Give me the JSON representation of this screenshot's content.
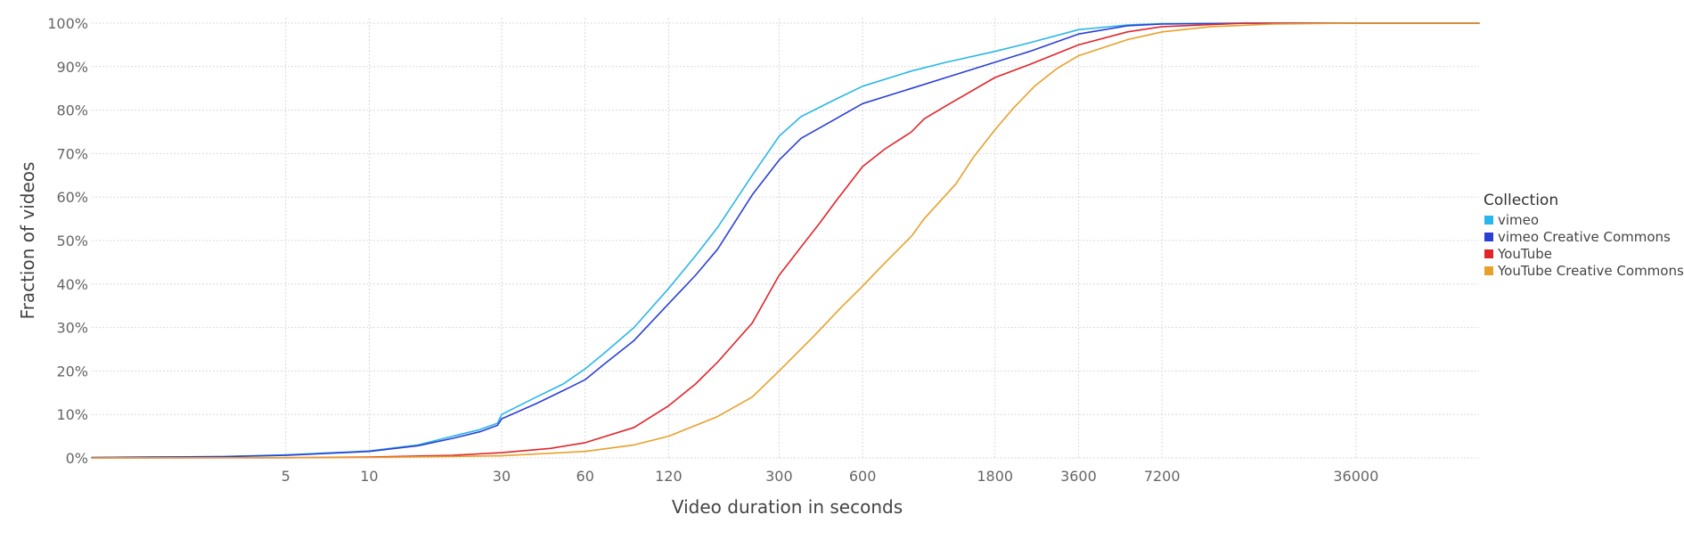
{
  "chart_data": {
    "type": "line",
    "xlabel": "Video duration in seconds",
    "ylabel": "Fraction of videos",
    "x_scale": "log",
    "xlim": [
      1,
      100000
    ],
    "ylim": [
      0,
      100
    ],
    "x_ticks": [
      5,
      10,
      30,
      60,
      120,
      300,
      600,
      1800,
      3600,
      7200,
      36000
    ],
    "x_tick_labels": [
      "5",
      "10",
      "30",
      "60",
      "120",
      "300",
      "600",
      "1800",
      "3600",
      "7200",
      "36000"
    ],
    "y_ticks": [
      0,
      10,
      20,
      30,
      40,
      50,
      60,
      70,
      80,
      90,
      100
    ],
    "y_tick_labels": [
      "0%",
      "10%",
      "20%",
      "30%",
      "40%",
      "50%",
      "60%",
      "70%",
      "80%",
      "90%",
      "100%"
    ],
    "grid": true,
    "legend": {
      "title": "Collection",
      "position": "right"
    },
    "series": [
      {
        "name": "vimeo",
        "color": "#29b6e8",
        "points": [
          [
            1,
            0.1
          ],
          [
            3,
            0.3
          ],
          [
            5,
            0.7
          ],
          [
            10,
            1.6
          ],
          [
            15,
            3
          ],
          [
            20,
            5
          ],
          [
            25,
            6.5
          ],
          [
            29,
            8
          ],
          [
            30,
            10
          ],
          [
            40,
            14
          ],
          [
            50,
            17
          ],
          [
            60,
            20.5
          ],
          [
            70,
            24
          ],
          [
            90,
            30
          ],
          [
            120,
            39
          ],
          [
            150,
            46.5
          ],
          [
            180,
            53
          ],
          [
            240,
            65
          ],
          [
            300,
            74
          ],
          [
            360,
            78.5
          ],
          [
            480,
            82.5
          ],
          [
            600,
            85.5
          ],
          [
            900,
            89
          ],
          [
            1200,
            91
          ],
          [
            1800,
            93.5
          ],
          [
            2400,
            95.5
          ],
          [
            3600,
            98.5
          ],
          [
            5400,
            99.6
          ],
          [
            7200,
            99.9
          ],
          [
            14400,
            100
          ],
          [
            100000,
            100
          ]
        ]
      },
      {
        "name": "vimeo Creative Commons",
        "color": "#2b3fd6",
        "points": [
          [
            1,
            0.1
          ],
          [
            3,
            0.3
          ],
          [
            5,
            0.6
          ],
          [
            10,
            1.5
          ],
          [
            15,
            2.8
          ],
          [
            20,
            4.5
          ],
          [
            25,
            6
          ],
          [
            29,
            7.5
          ],
          [
            30,
            9
          ],
          [
            40,
            12.5
          ],
          [
            50,
            15.5
          ],
          [
            60,
            18
          ],
          [
            70,
            21.5
          ],
          [
            90,
            27
          ],
          [
            120,
            35.5
          ],
          [
            150,
            42
          ],
          [
            180,
            48
          ],
          [
            240,
            60.5
          ],
          [
            300,
            68.5
          ],
          [
            360,
            73.5
          ],
          [
            480,
            78
          ],
          [
            600,
            81.5
          ],
          [
            900,
            85
          ],
          [
            1200,
            87.5
          ],
          [
            1800,
            91
          ],
          [
            2400,
            93.5
          ],
          [
            3600,
            97.5
          ],
          [
            5400,
            99.4
          ],
          [
            7200,
            99.8
          ],
          [
            14400,
            100
          ],
          [
            100000,
            100
          ]
        ]
      },
      {
        "name": "YouTube",
        "color": "#e0252b",
        "points": [
          [
            1,
            0
          ],
          [
            5,
            0.05
          ],
          [
            10,
            0.2
          ],
          [
            20,
            0.6
          ],
          [
            30,
            1.2
          ],
          [
            45,
            2.2
          ],
          [
            60,
            3.5
          ],
          [
            90,
            7
          ],
          [
            120,
            12
          ],
          [
            150,
            17
          ],
          [
            180,
            22
          ],
          [
            240,
            31
          ],
          [
            300,
            42
          ],
          [
            360,
            48.5
          ],
          [
            420,
            54
          ],
          [
            480,
            59
          ],
          [
            600,
            67
          ],
          [
            720,
            71
          ],
          [
            900,
            75
          ],
          [
            1000,
            78
          ],
          [
            1200,
            81
          ],
          [
            1800,
            87.5
          ],
          [
            2400,
            90.5
          ],
          [
            3600,
            95
          ],
          [
            5400,
            98
          ],
          [
            7200,
            99.2
          ],
          [
            14400,
            100
          ],
          [
            100000,
            100
          ]
        ]
      },
      {
        "name": "YouTube Creative Commons",
        "color": "#e8a02a",
        "points": [
          [
            1,
            0
          ],
          [
            10,
            0.1
          ],
          [
            30,
            0.5
          ],
          [
            60,
            1.5
          ],
          [
            90,
            3
          ],
          [
            120,
            5
          ],
          [
            180,
            9.5
          ],
          [
            240,
            14
          ],
          [
            300,
            20
          ],
          [
            400,
            28
          ],
          [
            500,
            34.5
          ],
          [
            600,
            39.5
          ],
          [
            700,
            44
          ],
          [
            900,
            51
          ],
          [
            1000,
            55
          ],
          [
            1300,
            63
          ],
          [
            1500,
            69
          ],
          [
            1800,
            75.5
          ],
          [
            2100,
            80.5
          ],
          [
            2500,
            85.5
          ],
          [
            3000,
            89.5
          ],
          [
            3600,
            92.5
          ],
          [
            5400,
            96.2
          ],
          [
            7200,
            98
          ],
          [
            10800,
            99.2
          ],
          [
            18000,
            99.8
          ],
          [
            36000,
            100
          ],
          [
            100000,
            100
          ]
        ]
      }
    ]
  }
}
